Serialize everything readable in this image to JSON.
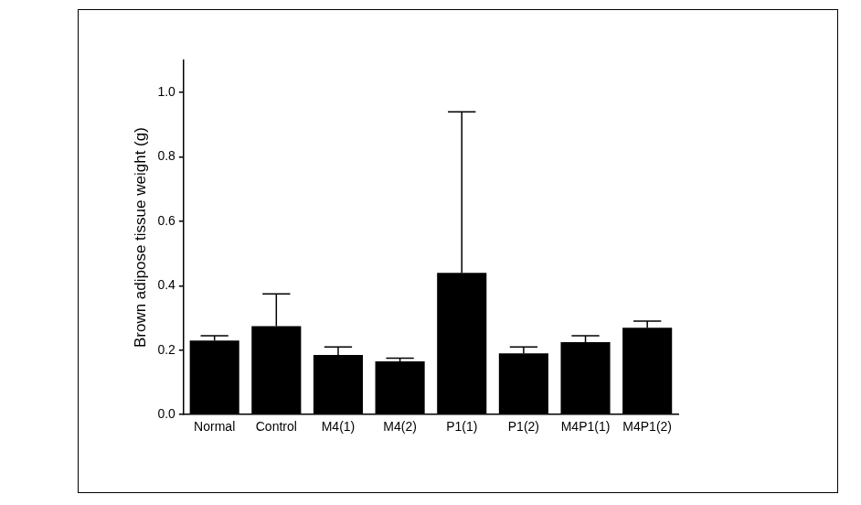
{
  "chart_data": {
    "type": "bar",
    "y_label": "Brown adipose tissue weight (g)",
    "categories": [
      "Normal",
      "Control",
      "M4(1)",
      "M4(2)",
      "P1(1)",
      "P1(2)",
      "M4P1(1)",
      "M4P1(2)"
    ],
    "values": [
      0.23,
      0.275,
      0.185,
      0.165,
      0.44,
      0.19,
      0.225,
      0.27
    ],
    "errors": [
      0.015,
      0.1,
      0.025,
      0.01,
      0.5,
      0.02,
      0.02,
      0.02
    ],
    "color": "#000000",
    "ylim": [
      0,
      1.1
    ],
    "yticks": [
      {
        "value": 0,
        "label": "0.0"
      },
      0.2,
      0.4,
      0.6,
      0.8,
      {
        "value": 1,
        "label": "1.0"
      }
    ],
    "grid": false
  }
}
